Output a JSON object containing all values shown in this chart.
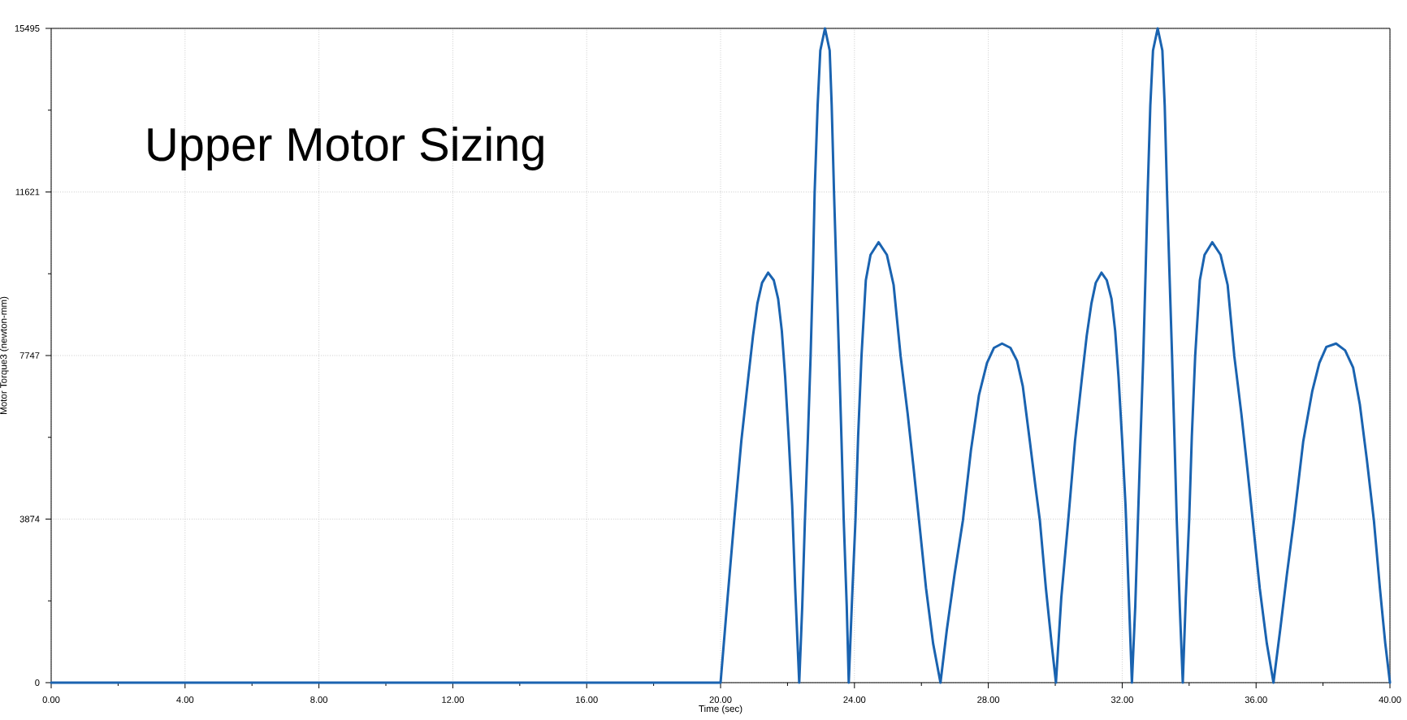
{
  "chart_data": {
    "type": "line",
    "title": "Upper Motor Sizing",
    "xlabel": "Time (sec)",
    "ylabel": "Motor Torque3 (newton-mm)",
    "x": [
      0,
      20.0,
      20.21,
      20.41,
      20.62,
      20.83,
      20.97,
      21.1,
      21.24,
      21.42,
      21.59,
      21.72,
      21.83,
      21.93,
      22.04,
      22.14,
      22.23,
      22.35,
      22.44,
      22.52,
      22.61,
      22.69,
      22.76,
      22.81,
      22.9,
      22.98,
      23.12,
      23.26,
      23.32,
      23.39,
      23.46,
      23.54,
      23.61,
      23.68,
      23.77,
      23.83,
      23.93,
      24.03,
      24.11,
      24.21,
      24.34,
      24.48,
      24.72,
      24.97,
      25.17,
      25.38,
      25.59,
      25.77,
      25.93,
      26.14,
      26.35,
      26.57,
      26.76,
      26.99,
      27.24,
      27.48,
      27.72,
      27.96,
      28.17,
      28.41,
      28.66,
      28.86,
      29.03,
      29.24,
      29.41,
      29.54,
      29.72,
      29.89,
      30.02,
      30.18,
      30.39,
      30.59,
      30.8,
      30.94,
      31.08,
      31.21,
      31.38,
      31.54,
      31.68,
      31.79,
      31.89,
      32.0,
      32.1,
      32.19,
      32.29,
      32.39,
      32.47,
      32.55,
      32.63,
      32.7,
      32.76,
      32.84,
      32.92,
      33.06,
      33.2,
      33.27,
      33.34,
      33.41,
      33.49,
      33.56,
      33.63,
      33.72,
      33.81,
      33.9,
      34.0,
      34.08,
      34.18,
      34.32,
      34.46,
      34.69,
      34.94,
      35.15,
      35.35,
      35.56,
      35.74,
      35.9,
      36.11,
      36.32,
      36.52,
      36.72,
      36.92,
      37.13,
      37.41,
      37.68,
      37.89,
      38.1,
      38.39,
      38.66,
      38.9,
      39.1,
      39.31,
      39.52,
      39.7,
      39.86,
      40.0
    ],
    "series": [
      {
        "color": "#1a63b0",
        "values": [
          0,
          0,
          2010,
          3870,
          5720,
          7240,
          8220,
          8980,
          9470,
          9710,
          9530,
          9090,
          8330,
          7240,
          5720,
          4190,
          2230,
          0,
          1800,
          3840,
          5830,
          7730,
          9750,
          11600,
          13670,
          14970,
          15495,
          14970,
          13670,
          11600,
          9750,
          7730,
          5830,
          3840,
          1800,
          0,
          2010,
          3840,
          5830,
          7730,
          9530,
          10130,
          10430,
          10130,
          9420,
          7730,
          6370,
          5060,
          3840,
          2230,
          930,
          0,
          1250,
          2560,
          3840,
          5500,
          6810,
          7570,
          7930,
          8030,
          7930,
          7620,
          7020,
          5720,
          4630,
          3840,
          2230,
          930,
          0,
          2010,
          3870,
          5720,
          7240,
          8220,
          8980,
          9470,
          9710,
          9530,
          9090,
          8330,
          7240,
          5720,
          4190,
          2230,
          0,
          1800,
          3840,
          5830,
          7730,
          9750,
          11600,
          13670,
          14970,
          15495,
          14970,
          13670,
          11600,
          9750,
          7730,
          5830,
          3840,
          1800,
          0,
          2010,
          3840,
          5830,
          7730,
          9530,
          10130,
          10430,
          10130,
          9420,
          7730,
          6370,
          5060,
          3840,
          2230,
          930,
          0,
          1250,
          2560,
          3840,
          5720,
          6910,
          7570,
          7950,
          8030,
          7870,
          7460,
          6590,
          5280,
          3840,
          2230,
          930,
          0
        ]
      }
    ],
    "xlim": [
      0,
      40
    ],
    "ylim": [
      0,
      15495
    ],
    "xticks": [
      {
        "value": 0,
        "label": "0.00"
      },
      {
        "value": 2,
        "label": null
      },
      {
        "value": 4,
        "label": "4.00"
      },
      {
        "value": 6,
        "label": null
      },
      {
        "value": 8,
        "label": "8.00"
      },
      {
        "value": 10,
        "label": null
      },
      {
        "value": 12,
        "label": "12.00"
      },
      {
        "value": 14,
        "label": null
      },
      {
        "value": 16,
        "label": "16.00"
      },
      {
        "value": 18,
        "label": null
      },
      {
        "value": 20,
        "label": "20.00"
      },
      {
        "value": 22,
        "label": null
      },
      {
        "value": 24,
        "label": "24.00"
      },
      {
        "value": 26,
        "label": null
      },
      {
        "value": 28,
        "label": "28.00"
      },
      {
        "value": 30,
        "label": null
      },
      {
        "value": 32,
        "label": "32.00"
      },
      {
        "value": 34,
        "label": null
      },
      {
        "value": 36,
        "label": "36.00"
      },
      {
        "value": 38,
        "label": null
      },
      {
        "value": 40,
        "label": "40.00"
      }
    ],
    "yticks": [
      0,
      {
        "value": 1937,
        "label": null
      },
      3874,
      {
        "value": 5810,
        "label": null
      },
      7747,
      {
        "value": 9684,
        "label": null
      },
      11621,
      {
        "value": 13558,
        "label": null
      },
      15495
    ],
    "grid": true,
    "line_style": "solid"
  }
}
